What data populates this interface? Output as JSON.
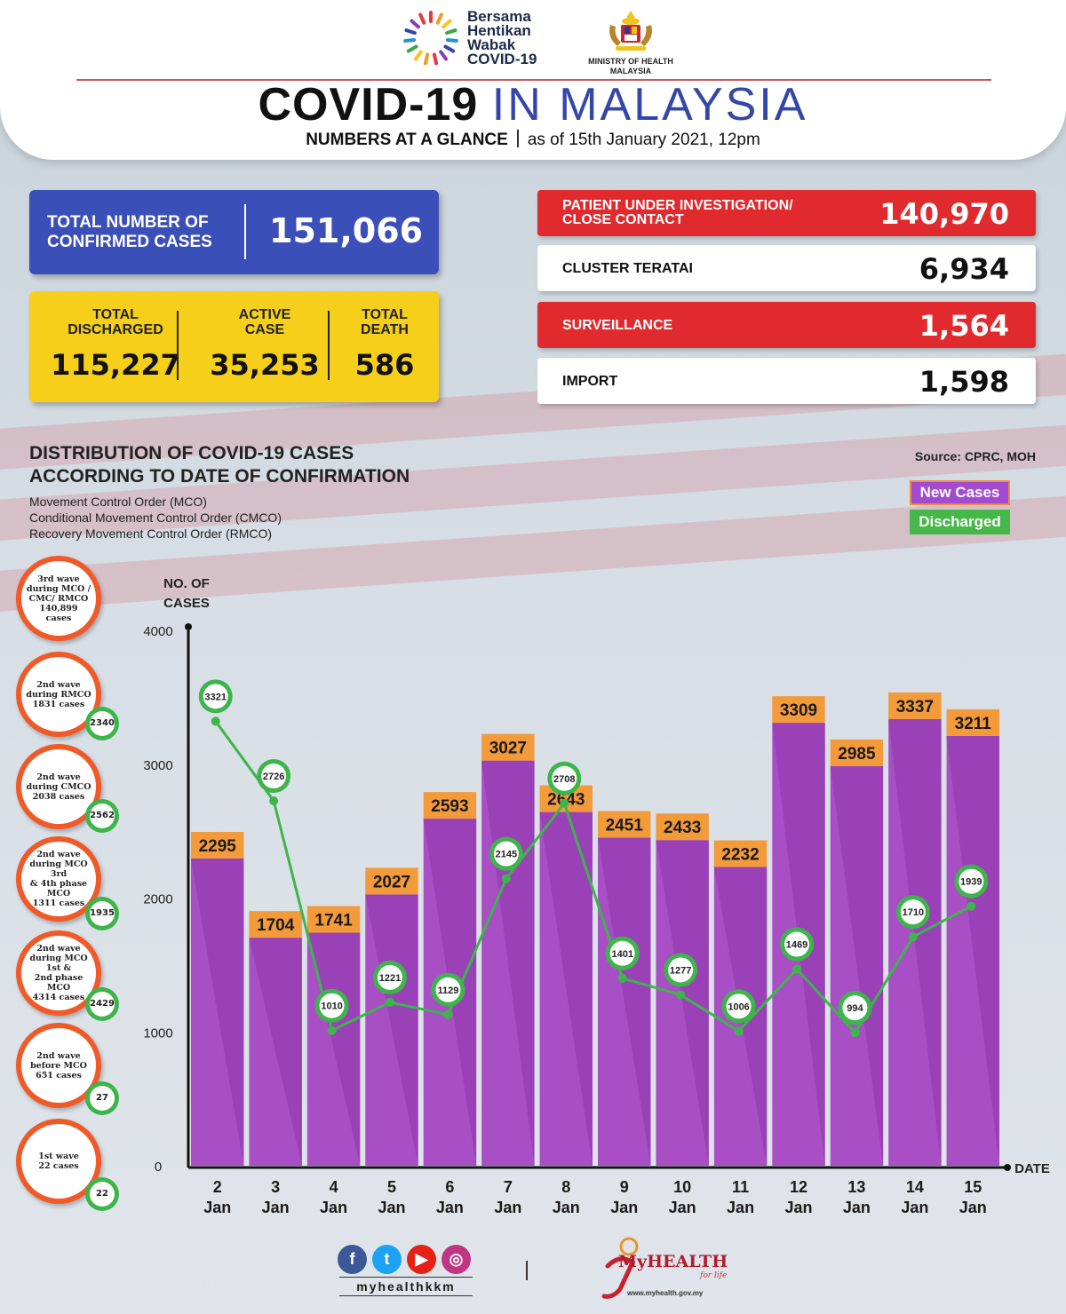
{
  "header": {
    "campaign_lines": [
      "Bersama",
      "Hentikan",
      "Wabak",
      "COVID-19"
    ],
    "ministry_lines": [
      "MINISTRY OF HEALTH",
      "MALAYSIA"
    ],
    "title_part1": "COVID-19",
    "title_part2": "IN MALAYSIA",
    "subtitle_bold": "NUMBERS AT A GLANCE",
    "subtitle_date": "as of 15th January 2021, 12pm"
  },
  "totals": {
    "confirmed_label_1": "TOTAL NUMBER OF",
    "confirmed_label_2": "CONFIRMED CASES",
    "confirmed_value": "151,066",
    "discharged_label_1": "TOTAL",
    "discharged_label_2": "DISCHARGED",
    "discharged_value": "115,227",
    "active_label_1": "ACTIVE",
    "active_label_2": "CASE",
    "active_value": "35,253",
    "death_label_1": "TOTAL",
    "death_label_2": "DEATH",
    "death_value": "586"
  },
  "stats": [
    {
      "label_1": "PATIENT UNDER INVESTIGATION/",
      "label_2": "CLOSE CONTACT",
      "value": "140,970",
      "style": "red"
    },
    {
      "label_1": "CLUSTER TERATAI",
      "label_2": "",
      "value": "6,934",
      "style": "white"
    },
    {
      "label_1": "SURVEILLANCE",
      "label_2": "",
      "value": "1,564",
      "style": "red"
    },
    {
      "label_1": "IMPORT",
      "label_2": "",
      "value": "1,598",
      "style": "white"
    }
  ],
  "distribution": {
    "title_1": "DISTRIBUTION OF COVID-19 CASES",
    "title_2": "ACCORDING TO DATE OF CONFIRMATION",
    "note_1": "Movement Control Order (MCO)",
    "note_2": "Conditional Movement Control Order (CMCO)",
    "note_3": "Recovery Movement Control Order (RMCO)",
    "source": "Source: CPRC, MOH",
    "legend_new": "New Cases",
    "legend_discharged": "Discharged"
  },
  "waves": [
    {
      "text": "3rd wave\nduring MCO /\nCMC/ RMCO\n140,899\ncases",
      "badge": ""
    },
    {
      "text": "2nd wave\nduring RMCO\n1831 cases",
      "badge": "2340"
    },
    {
      "text": "2nd wave\nduring CMCO\n2038 cases",
      "badge": "2562"
    },
    {
      "text": "2nd wave\nduring MCO 3rd\n& 4th phase MCO\n1311 cases",
      "badge": "1935"
    },
    {
      "text": "2nd wave\nduring MCO 1st &\n2nd phase MCO\n4314 cases",
      "badge": "2429"
    },
    {
      "text": "2nd wave\nbefore MCO\n651 cases",
      "badge": "27"
    },
    {
      "text": "1st wave\n22 cases",
      "badge": "22"
    }
  ],
  "chart_data": {
    "type": "bar",
    "ylabel": "NO. OF CASES",
    "xlabel": "DATE",
    "ylim": [
      0,
      4000
    ],
    "yticks": [
      0,
      1000,
      2000,
      3000,
      4000
    ],
    "categories": [
      "2 Jan",
      "3 Jan",
      "4 Jan",
      "5 Jan",
      "6 Jan",
      "7 Jan",
      "8 Jan",
      "9 Jan",
      "10 Jan",
      "11 Jan",
      "12 Jan",
      "13 Jan",
      "14 Jan",
      "15 Jan"
    ],
    "series": [
      {
        "name": "New Cases",
        "kind": "bar",
        "color": "#a84fc6",
        "label_color": "#f39a3a",
        "values": [
          2295,
          1704,
          1741,
          2027,
          2593,
          3027,
          2643,
          2451,
          2433,
          2232,
          3309,
          2985,
          3337,
          3211
        ]
      },
      {
        "name": "Discharged",
        "kind": "line",
        "color": "#3db54a",
        "values": [
          3321,
          2726,
          1010,
          1221,
          1129,
          2145,
          2708,
          1401,
          1277,
          1006,
          1469,
          994,
          1710,
          1939
        ]
      }
    ],
    "legend_position": "top-right",
    "grid": false
  },
  "footer": {
    "social_handle": "myhealthkkm",
    "social_icons": [
      "facebook-icon",
      "twitter-icon",
      "youtube-icon",
      "instagram-icon"
    ],
    "brand": "MyHEALTH",
    "brand_tagline": "for life",
    "url": "www.myhealth.gov.my"
  },
  "colors": {
    "blue_card": "#3b4fb8",
    "yellow_card": "#f6cf1a",
    "red_row": "#e02a2e",
    "bar": "#a84fc6",
    "bar_label": "#f39a3a",
    "line": "#3db54a",
    "wave_ring": "#f05a28"
  }
}
